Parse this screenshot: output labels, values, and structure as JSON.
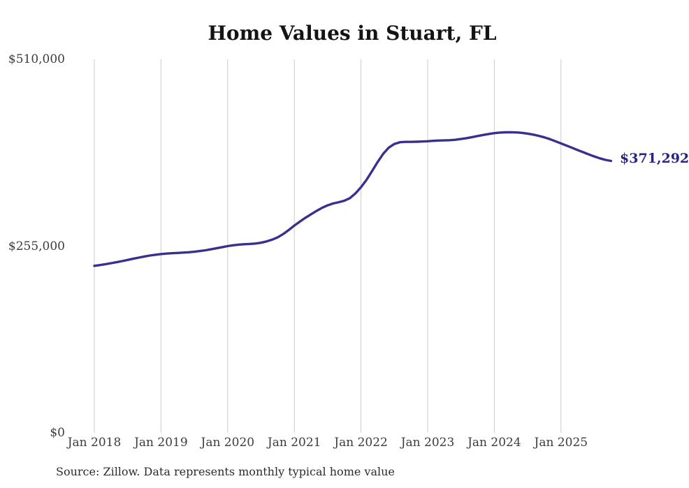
{
  "page": {
    "title": "Home Values in Stuart, FL"
  },
  "chart_data": {
    "type": "line",
    "title": "Home Values in Stuart, FL",
    "xlabel": "",
    "ylabel": "",
    "series_name": "Monthly typical home value",
    "ylim": [
      0,
      510000
    ],
    "y_ticks": [
      0,
      255000,
      510000
    ],
    "y_tick_labels": [
      "$0",
      "$255,000",
      "$510,000"
    ],
    "x_tick_labels": [
      "Jan 2018",
      "Jan 2019",
      "Jan 2020",
      "Jan 2021",
      "Jan 2022",
      "Jan 2023",
      "Jan 2024",
      "Jan 2025"
    ],
    "grid": "vertical-only",
    "legend": "none",
    "line_color": "#38308e",
    "gridline_color": "#cccccc",
    "end_label": "$371,292",
    "end_value": 371292,
    "x_unit": "month",
    "x": [
      "2018-01",
      "2018-02",
      "2018-03",
      "2018-04",
      "2018-05",
      "2018-06",
      "2018-07",
      "2018-08",
      "2018-09",
      "2018-10",
      "2018-11",
      "2018-12",
      "2019-01",
      "2019-02",
      "2019-03",
      "2019-04",
      "2019-05",
      "2019-06",
      "2019-07",
      "2019-08",
      "2019-09",
      "2019-10",
      "2019-11",
      "2019-12",
      "2020-01",
      "2020-02",
      "2020-03",
      "2020-04",
      "2020-05",
      "2020-06",
      "2020-07",
      "2020-08",
      "2020-09",
      "2020-10",
      "2020-11",
      "2020-12",
      "2021-01",
      "2021-02",
      "2021-03",
      "2021-04",
      "2021-05",
      "2021-06",
      "2021-07",
      "2021-08",
      "2021-09",
      "2021-10",
      "2021-11",
      "2021-12",
      "2022-01",
      "2022-02",
      "2022-03",
      "2022-04",
      "2022-05",
      "2022-06",
      "2022-07",
      "2022-08",
      "2022-09",
      "2022-10",
      "2022-11",
      "2022-12",
      "2023-01",
      "2023-02",
      "2023-03",
      "2023-04",
      "2023-05",
      "2023-06",
      "2023-07",
      "2023-08",
      "2023-09",
      "2023-10",
      "2023-11",
      "2023-12",
      "2024-01",
      "2024-02",
      "2024-03",
      "2024-04",
      "2024-05",
      "2024-06",
      "2024-07",
      "2024-08",
      "2024-09",
      "2024-10",
      "2024-11",
      "2024-12",
      "2025-01",
      "2025-02",
      "2025-03",
      "2025-04",
      "2025-05",
      "2025-06",
      "2025-07",
      "2025-08",
      "2025-09",
      "2025-10"
    ],
    "values": [
      228000,
      229100,
      230300,
      231600,
      233000,
      234500,
      236100,
      237700,
      239300,
      240800,
      242100,
      243200,
      244100,
      244800,
      245300,
      245700,
      246100,
      246600,
      247300,
      248200,
      249300,
      250600,
      252000,
      253500,
      255000,
      256100,
      257000,
      257600,
      258000,
      258500,
      259600,
      261400,
      263800,
      267000,
      271500,
      277000,
      283000,
      288500,
      293700,
      298500,
      303000,
      307200,
      310700,
      313200,
      315000,
      317000,
      320500,
      327000,
      335500,
      345500,
      357500,
      370000,
      381000,
      389500,
      394500,
      396800,
      397300,
      397300,
      397500,
      397800,
      398200,
      398800,
      399100,
      399300,
      399600,
      400200,
      401200,
      402400,
      403800,
      405300,
      406800,
      408100,
      409200,
      410000,
      410400,
      410500,
      410200,
      409600,
      408600,
      407200,
      405500,
      403500,
      401000,
      398200,
      395200,
      392200,
      389200,
      386200,
      383200,
      380200,
      377400,
      374800,
      372700,
      371292
    ]
  },
  "footer": {
    "source_text": "Source: Zillow. Data represents monthly typical home value"
  }
}
